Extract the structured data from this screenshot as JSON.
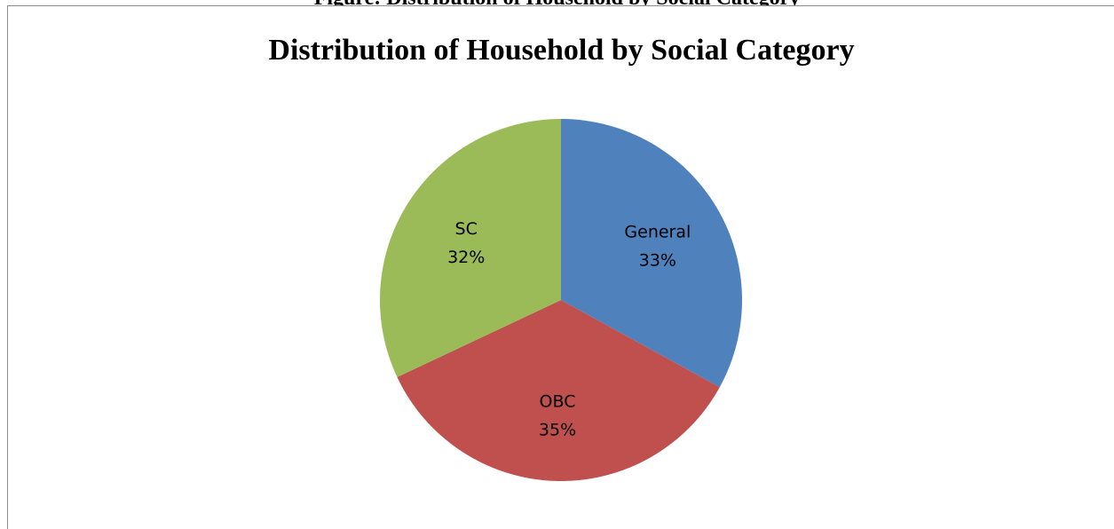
{
  "figure_caption": "Figure: Distribution of Household by Social Category",
  "chart_data": {
    "type": "pie",
    "title": "Distribution of Household by Social Category",
    "categories": [
      "General",
      "OBC",
      "SC"
    ],
    "values": [
      33,
      35,
      32
    ],
    "value_labels": [
      "33%",
      "35%",
      "32%"
    ],
    "colors": [
      "#4f81bd",
      "#c0504d",
      "#9bbb59"
    ],
    "start_angle_deg": 0,
    "direction": "clockwise",
    "legend": "none",
    "labels_placement": "inside"
  }
}
